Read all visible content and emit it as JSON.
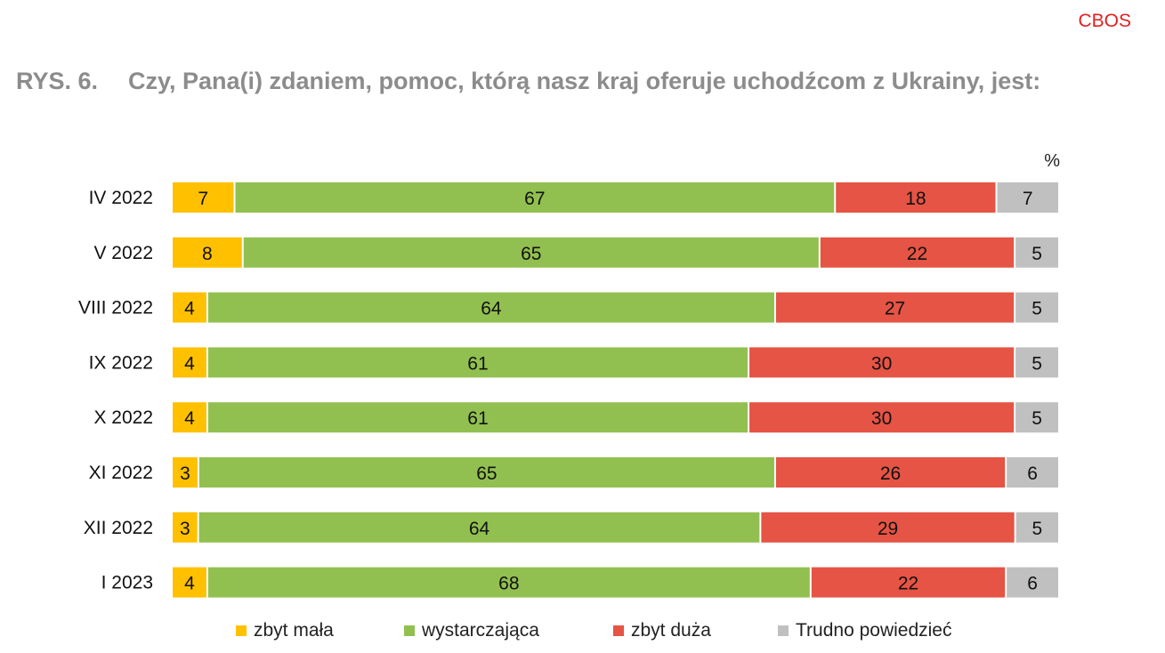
{
  "brand": "CBOS",
  "figure_number": "RYS. 6.",
  "question": "Czy, Pana(i) zdaniem, pomoc, którą nasz kraj oferuje uchodźcom z Ukrainy, jest:",
  "chart_data": {
    "type": "bar",
    "orientation": "horizontal",
    "stacked": true,
    "unit_label": "%",
    "categories": [
      "IV 2022",
      "V 2022",
      "VIII 2022",
      "IX 2022",
      "X 2022",
      "XI 2022",
      "XII 2022",
      "I 2023"
    ],
    "series": [
      {
        "name": "zbyt mała",
        "color": "#ffc000",
        "values": [
          7,
          8,
          4,
          4,
          4,
          3,
          3,
          4
        ]
      },
      {
        "name": "wystarczająca",
        "color": "#92c050",
        "values": [
          67,
          65,
          64,
          61,
          61,
          65,
          64,
          68
        ]
      },
      {
        "name": "zbyt duża",
        "color": "#e55444",
        "values": [
          18,
          22,
          27,
          30,
          30,
          26,
          29,
          22
        ]
      },
      {
        "name": "Trudno powiedzieć",
        "color": "#c0c0c0",
        "values": [
          7,
          5,
          5,
          5,
          5,
          6,
          5,
          6
        ]
      }
    ],
    "xlim": [
      0,
      100
    ],
    "grid": false,
    "legend_position": "bottom"
  }
}
